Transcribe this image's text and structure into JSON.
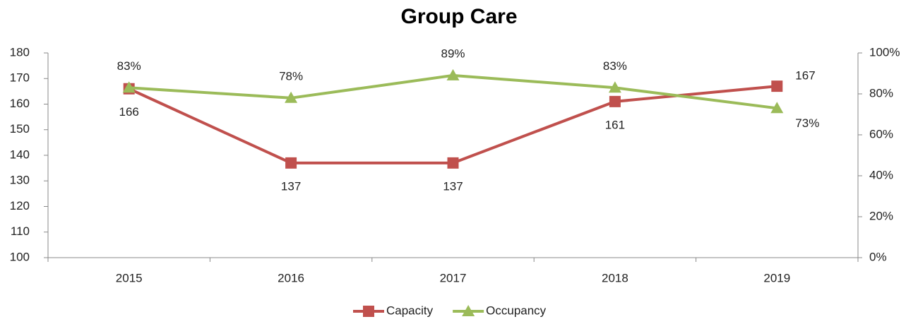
{
  "chart_data": {
    "type": "line",
    "title": "Group Care",
    "categories": [
      "2015",
      "2016",
      "2017",
      "2018",
      "2019"
    ],
    "series": [
      {
        "name": "Capacity",
        "color": "#c0504d",
        "marker": "square",
        "values": [
          166,
          137,
          137,
          161,
          167
        ]
      },
      {
        "name": "Occupancy",
        "color": "#9bbb59",
        "marker": "triangle",
        "axis": "y2",
        "values": [
          83,
          78,
          89,
          83,
          73
        ],
        "value_labels": [
          "83%",
          "78%",
          "89%",
          "83%",
          "73%"
        ]
      }
    ],
    "ylim": [
      100,
      180
    ],
    "yticks": [
      100,
      110,
      120,
      130,
      140,
      150,
      160,
      170,
      180
    ],
    "y2lim": [
      0,
      100
    ],
    "y2ticks": [
      {
        "value": 0,
        "label": "0%"
      },
      {
        "value": 20,
        "label": "20%"
      },
      {
        "value": 40,
        "label": "40%"
      },
      {
        "value": 60,
        "label": "60%"
      },
      {
        "value": 80,
        "label": "80%"
      },
      {
        "value": 100,
        "label": "100%"
      }
    ],
    "grid": false,
    "legend": "bottom"
  }
}
